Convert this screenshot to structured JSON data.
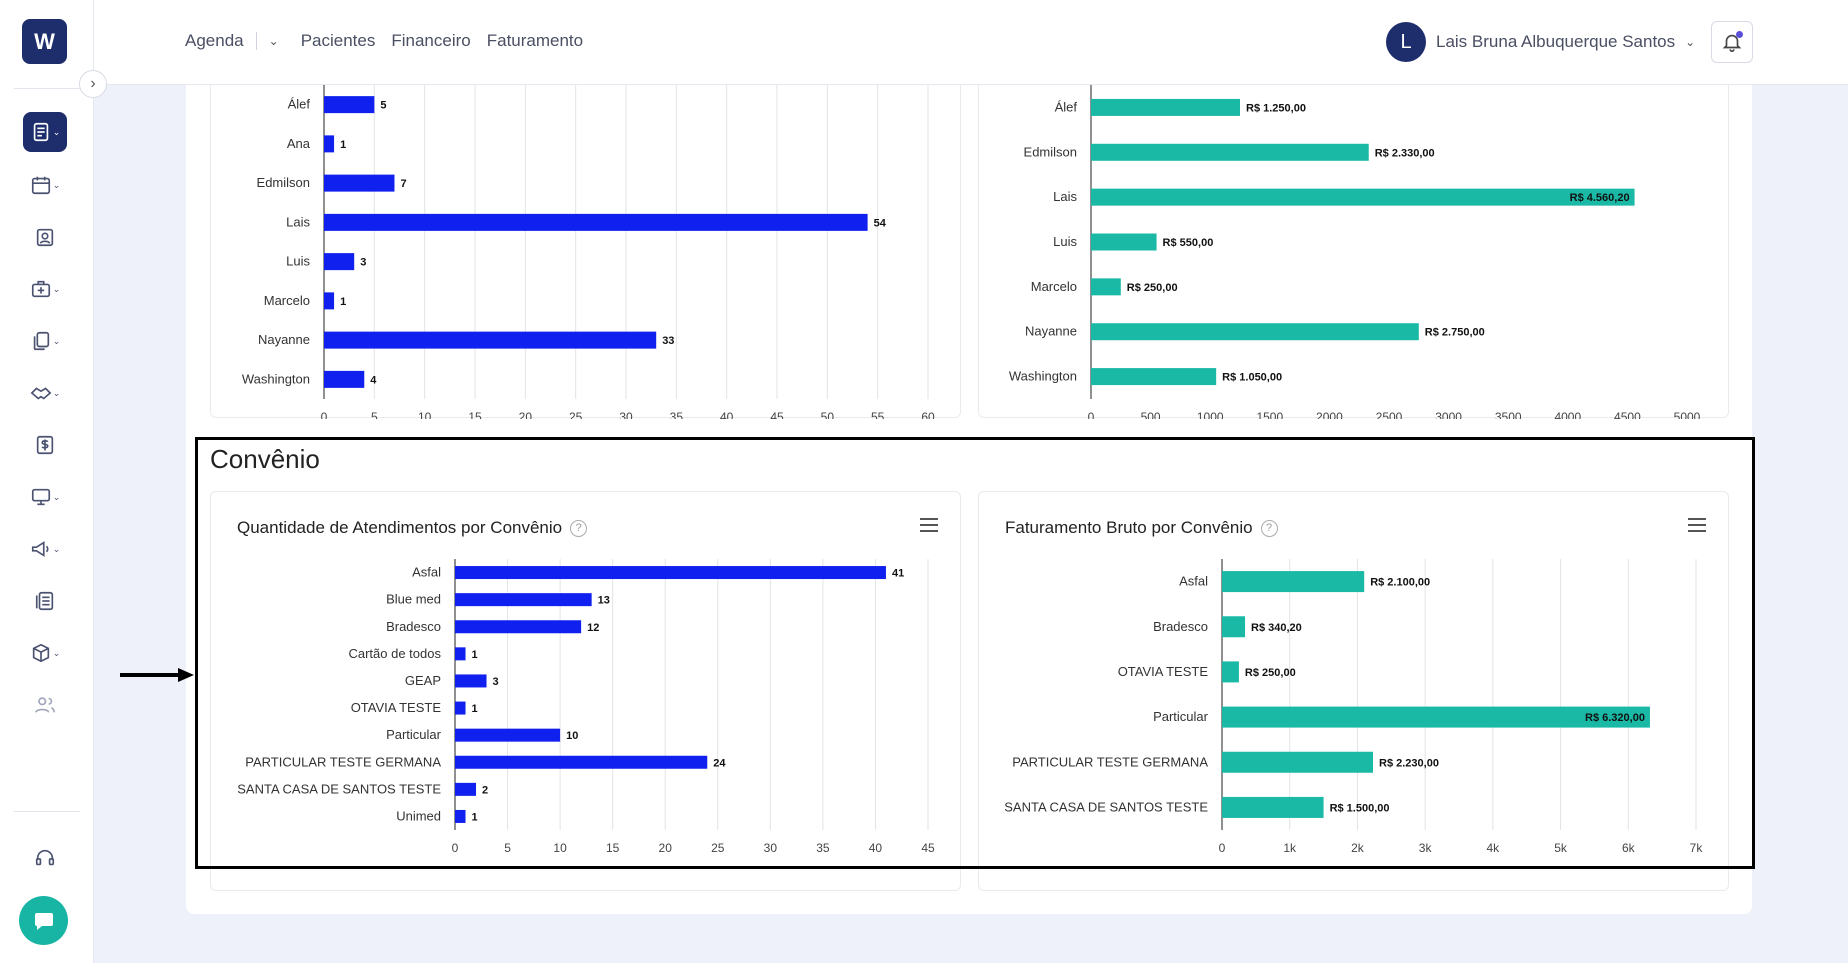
{
  "topnav": {
    "items": [
      "Agenda",
      "Pacientes",
      "Financeiro",
      "Faturamento"
    ],
    "user_initial": "L",
    "user_name": "Lais Bruna Albuquerque Santos"
  },
  "sidebar": {
    "logo": "W",
    "icons": [
      "agenda-icon",
      "calendar-icon",
      "patient-icon",
      "medical-bag-icon",
      "documents-icon",
      "handshake-icon",
      "dollar-icon",
      "monitor-icon",
      "megaphone-icon",
      "reports-icon",
      "package-icon",
      "users-icon",
      "support-icon"
    ]
  },
  "section": {
    "title": "Convênio"
  },
  "cards": {
    "convenio_qty_title": "Quantidade de Atendimentos por Convênio",
    "convenio_revenue_title": "Faturamento Bruto por Convênio",
    "help": "?"
  },
  "colors": {
    "blue": "#1020ee",
    "teal": "#1ab9a6",
    "navy": "#1e2d6b"
  },
  "chart_data": [
    {
      "type": "bar",
      "orientation": "horizontal",
      "categories": [
        "Álef",
        "Ana",
        "Edmilson",
        "Lais",
        "Luis",
        "Marcelo",
        "Nayanne",
        "Washington"
      ],
      "values": [
        5,
        1,
        7,
        54,
        3,
        1,
        33,
        4
      ],
      "data_labels": [
        "5",
        "1",
        "7",
        "54",
        "3",
        "1",
        "33",
        "4"
      ],
      "xticks": [
        "0",
        "5",
        "10",
        "15",
        "20",
        "25",
        "30",
        "35",
        "40",
        "45",
        "50",
        "55",
        "60"
      ],
      "xlim": [
        0,
        60
      ],
      "grid": true
    },
    {
      "type": "bar",
      "orientation": "horizontal",
      "categories": [
        "Álef",
        "Edmilson",
        "Lais",
        "Luis",
        "Marcelo",
        "Nayanne",
        "Washington"
      ],
      "values": [
        1250,
        2330,
        4560.2,
        550,
        250,
        2750,
        1050
      ],
      "data_labels": [
        "R$ 1.250,00",
        "R$ 2.330,00",
        "R$ 4.560,20",
        "R$ 550,00",
        "R$ 250,00",
        "R$ 2.750,00",
        "R$ 1.050,00"
      ],
      "xticks": [
        "0",
        "500",
        "1000",
        "1500",
        "2000",
        "2500",
        "3000",
        "3500",
        "4000",
        "4500",
        "5000"
      ],
      "xlim": [
        0,
        5000
      ],
      "grid": false
    },
    {
      "type": "bar",
      "orientation": "horizontal",
      "title": "Quantidade de Atendimentos por Convênio",
      "categories": [
        "Asfal",
        "Blue med",
        "Bradesco",
        "Cartão de todos",
        "GEAP",
        "OTAVIA TESTE",
        "Particular",
        "PARTICULAR TESTE GERMANA",
        "SANTA CASA DE SANTOS TESTE",
        "Unimed"
      ],
      "values": [
        41,
        13,
        12,
        1,
        3,
        1,
        10,
        24,
        2,
        1
      ],
      "data_labels": [
        "41",
        "13",
        "12",
        "1",
        "3",
        "1",
        "10",
        "24",
        "2",
        "1"
      ],
      "xticks": [
        "0",
        "5",
        "10",
        "15",
        "20",
        "25",
        "30",
        "35",
        "40",
        "45"
      ],
      "xlim": [
        0,
        45
      ],
      "grid": true
    },
    {
      "type": "bar",
      "orientation": "horizontal",
      "title": "Faturamento Bruto por Convênio",
      "categories": [
        "Asfal",
        "Bradesco",
        "OTAVIA TESTE",
        "Particular",
        "PARTICULAR TESTE GERMANA",
        "SANTA CASA DE SANTOS TESTE"
      ],
      "values": [
        2100,
        340.2,
        250,
        6320,
        2230,
        1500
      ],
      "data_labels": [
        "R$ 2.100,00",
        "R$ 340,20",
        "R$ 250,00",
        "R$ 6.320,00",
        "R$ 2.230,00",
        "R$ 1.500,00"
      ],
      "xticks": [
        "0",
        "1k",
        "2k",
        "3k",
        "4k",
        "5k",
        "6k",
        "7k"
      ],
      "xlim": [
        0,
        7000
      ],
      "grid": true
    }
  ]
}
